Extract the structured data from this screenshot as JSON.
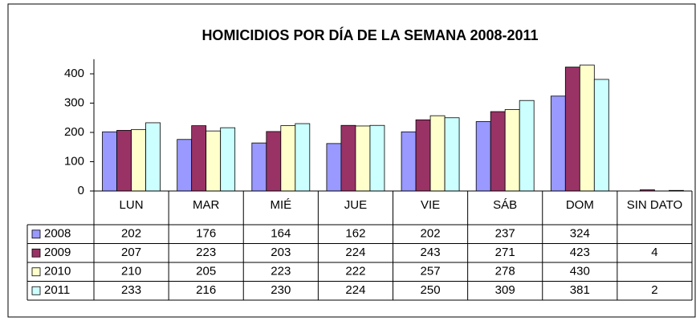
{
  "chart_data": {
    "type": "bar",
    "title": "HOMICIDIOS POR DÍA DE LA SEMANA 2008-2011",
    "categories": [
      "LUN",
      "MAR",
      "MIÉ",
      "JUE",
      "VIE",
      "SÁB",
      "DOM",
      "SIN DATO"
    ],
    "series": [
      {
        "name": "2008",
        "color": "#9999ff",
        "values": [
          202,
          176,
          164,
          162,
          202,
          237,
          324,
          null
        ]
      },
      {
        "name": "2009",
        "color": "#993366",
        "values": [
          207,
          223,
          203,
          224,
          243,
          271,
          423,
          4
        ]
      },
      {
        "name": "2010",
        "color": "#ffffcc",
        "values": [
          210,
          205,
          223,
          222,
          257,
          278,
          430,
          null
        ]
      },
      {
        "name": "2011",
        "color": "#ccffff",
        "values": [
          233,
          216,
          230,
          224,
          250,
          309,
          381,
          2
        ]
      }
    ],
    "ylim": [
      0,
      450
    ],
    "yticks": [
      0,
      100,
      200,
      300,
      400
    ]
  }
}
